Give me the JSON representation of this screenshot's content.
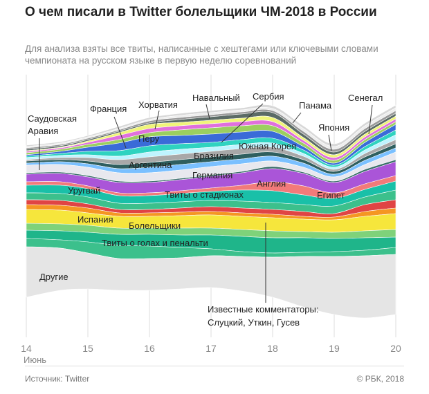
{
  "title": "О чем писали в Twitter болельщики ЧМ-2018 в России",
  "subtitle": "Для анализа взяты все твиты, написанные с хештегами или ключевыми словами чемпионата на русском языке в первую неделю соревнований",
  "footer": {
    "source": "Источник: Twitter",
    "copyright": "© РБК, 2018"
  },
  "chart_data": {
    "type": "area",
    "subtype": "streamgraph",
    "x_ticks": [
      "14",
      "15",
      "16",
      "17",
      "18",
      "19",
      "20"
    ],
    "x_unit_label": "Июнь",
    "grid": "vertical",
    "stream_colors": [
      "#d8d8d8",
      "#ededed",
      "#999999",
      "#5b6b66",
      "#f0f57a",
      "#e070dd",
      "#9bcf5f",
      "#3a6bd8",
      "#2fd3c0",
      "#bff4ff",
      "#a8a8a8",
      "#2f5f5f",
      "#7ac0ff",
      "#e8e8ee",
      "#3a6f6a",
      "#aa55d8",
      "#f27a7a",
      "#19c0a8",
      "#3cc08c",
      "#e04444",
      "#f59622",
      "#f6e63c",
      "#7fd27a",
      "#1fb58a",
      "#3cc08c",
      "#e5e5e5"
    ],
    "labels": [
      {
        "text": "Саудовская"
      },
      {
        "text": "Аравия"
      },
      {
        "text": "Франция"
      },
      {
        "text": "Хорватия"
      },
      {
        "text": "Навальный"
      },
      {
        "text": "Сербия"
      },
      {
        "text": "Панама"
      },
      {
        "text": "Сенегал"
      },
      {
        "text": "Перу"
      },
      {
        "text": "Япония"
      },
      {
        "text": "Южная Корея"
      },
      {
        "text": "Бразилия"
      },
      {
        "text": "Аргентина"
      },
      {
        "text": "Германия"
      },
      {
        "text": "Англия"
      },
      {
        "text": "Уругвай"
      },
      {
        "text": "Твиты о стадионах"
      },
      {
        "text": "Египет"
      },
      {
        "text": "Испания"
      },
      {
        "text": "Болельщики"
      },
      {
        "text": "Твиты о голах и пенальти"
      },
      {
        "text": "Другие"
      },
      {
        "text": "Известные комментаторы:"
      },
      {
        "text": "Слуцкий, Уткин, Гусев"
      }
    ]
  }
}
